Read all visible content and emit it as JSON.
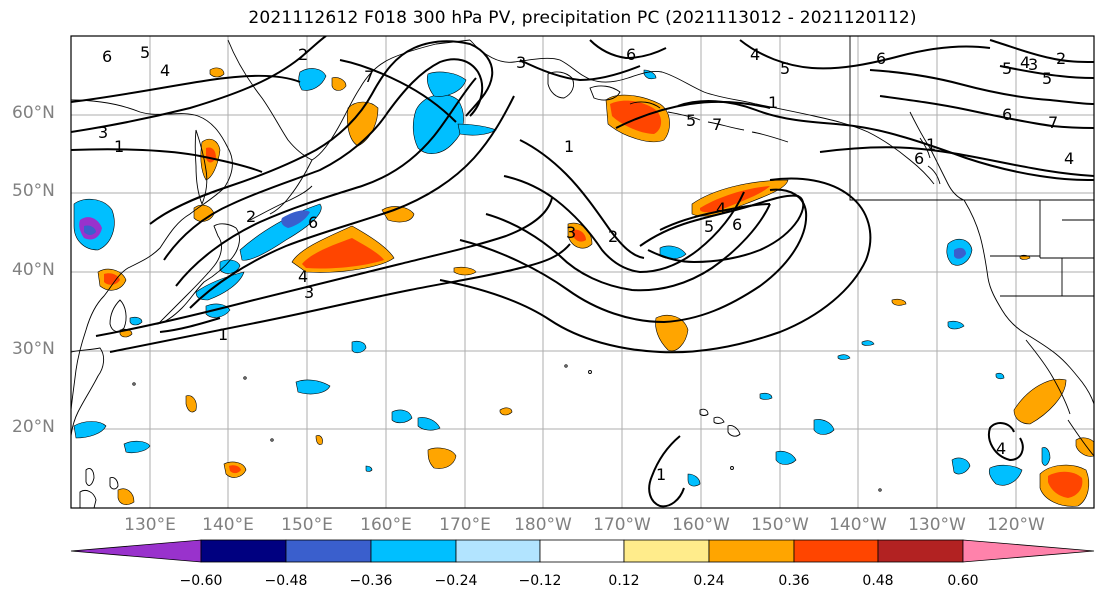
{
  "title": "2021112612 F018 300 hPa PV, precipitation PC (2021113012 - 2021120112)",
  "lat_labels": [
    "60°N",
    "50°N",
    "40°N",
    "30°N",
    "20°N"
  ],
  "lon_labels": [
    "130°E",
    "140°E",
    "150°E",
    "160°E",
    "170°E",
    "180°W",
    "170°W",
    "160°W",
    "150°W",
    "140°W",
    "130°W",
    "120°W"
  ],
  "colorbar": {
    "ticks": [
      "−0.60",
      "−0.48",
      "−0.36",
      "−0.24",
      "−0.12",
      "0.12",
      "0.24",
      "0.36",
      "0.48",
      "0.60"
    ],
    "colors": [
      "#9932CC",
      "#000080",
      "#3A5FCD",
      "#00BFFF",
      "#B2E4FF",
      "#FFFFFF",
      "#FFEC8B",
      "#FFA500",
      "#FF4500",
      "#B22222",
      "#FF82AB"
    ]
  },
  "contour_labels": [
    "6",
    "5",
    "4",
    "3",
    "1",
    "2",
    "7",
    "3",
    "6",
    "4",
    "5",
    "6",
    "5",
    "2",
    "3",
    "4",
    "5",
    "6",
    "7",
    "1",
    "4",
    "6",
    "2",
    "3",
    "2",
    "4",
    "5",
    "6",
    "1",
    "7",
    "1",
    "1",
    "3",
    "4",
    "5",
    "6",
    "4",
    "1"
  ]
}
